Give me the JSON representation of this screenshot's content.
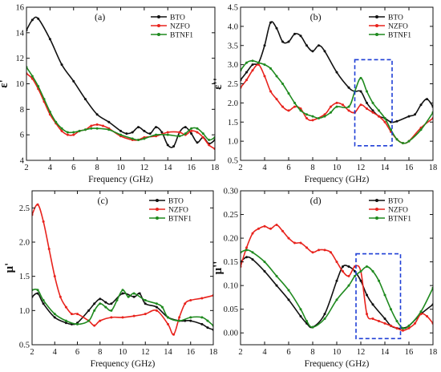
{
  "colors": {
    "BTO": "#111111",
    "NZFO": "#e8231d",
    "BTNF1": "#1f8a1f",
    "highlight": "#1f3fd6"
  },
  "chart_data": [
    {
      "type": "line",
      "tag": "(a)",
      "xlabel": "Frequency (GHz)",
      "ylabel": "ε'",
      "xlim": [
        2,
        18
      ],
      "ylim": [
        4,
        16
      ],
      "xticks": [
        2,
        4,
        6,
        8,
        10,
        12,
        14,
        16,
        18
      ],
      "yticks": [
        4,
        6,
        8,
        10,
        12,
        14,
        16
      ],
      "legend_position": "top-right",
      "highlight_box": null,
      "series": [
        {
          "name": "BTO",
          "x": [
            2,
            2.5,
            3,
            4,
            5,
            6,
            7,
            8,
            9,
            10,
            10.5,
            11,
            11.5,
            12,
            12.5,
            13,
            13.5,
            14,
            14.5,
            15,
            15.5,
            16,
            16.5,
            17,
            17.5,
            18
          ],
          "y": [
            14.2,
            15.0,
            15.1,
            13.5,
            11.5,
            10.2,
            8.8,
            7.6,
            7.0,
            6.3,
            6.1,
            6.2,
            6.6,
            6.3,
            6.1,
            6.6,
            6.2,
            5.2,
            5.1,
            6.2,
            6.6,
            6.1,
            5.4,
            5.8,
            5.3,
            5.6
          ]
        },
        {
          "name": "NZFO",
          "x": [
            2,
            2.5,
            3,
            3.5,
            4,
            4.5,
            5,
            5.5,
            6,
            6.5,
            7,
            7.5,
            8,
            8.5,
            9,
            10,
            11,
            11.5,
            12,
            13,
            14,
            15,
            15.5,
            16,
            16.5,
            17,
            17.5,
            18
          ],
          "y": [
            10.8,
            10.4,
            9.6,
            8.6,
            7.6,
            6.9,
            6.3,
            6.0,
            6.0,
            6.3,
            6.4,
            6.7,
            6.8,
            6.7,
            6.5,
            5.9,
            5.6,
            5.6,
            5.8,
            5.9,
            6.2,
            6.2,
            6.0,
            6.3,
            6.2,
            5.8,
            5.2,
            4.9
          ]
        },
        {
          "name": "BTNF1",
          "x": [
            2,
            2.5,
            3,
            3.5,
            4,
            4.5,
            5,
            5.5,
            6,
            6.5,
            7,
            7.5,
            8,
            9,
            10,
            11,
            11.5,
            12,
            13,
            14,
            15,
            15.5,
            16,
            16.5,
            17,
            17.5,
            18
          ],
          "y": [
            11.3,
            10.6,
            9.8,
            8.8,
            7.8,
            7.0,
            6.5,
            6.2,
            6.2,
            6.3,
            6.4,
            6.5,
            6.5,
            6.4,
            6.0,
            5.7,
            5.6,
            5.7,
            6.0,
            6.0,
            5.9,
            6.1,
            6.5,
            6.5,
            6.1,
            5.6,
            5.8
          ]
        }
      ]
    },
    {
      "type": "line",
      "tag": "(b)",
      "xlabel": "Frequency (GHz)",
      "ylabel": "ε''",
      "xlim": [
        2,
        18
      ],
      "ylim": [
        0.5,
        4.5
      ],
      "xticks": [
        2,
        4,
        6,
        8,
        10,
        12,
        14,
        16,
        18
      ],
      "yticks": [
        0.5,
        1.0,
        1.5,
        2.0,
        2.5,
        3.0,
        3.5,
        4.0,
        4.5
      ],
      "legend_position": "top-right",
      "highlight_box": {
        "x": [
          11.5,
          14.6
        ],
        "y": [
          0.88,
          3.13
        ]
      },
      "series": [
        {
          "name": "BTO",
          "x": [
            2,
            2.5,
            3,
            3.5,
            4,
            4.5,
            5,
            5.5,
            6,
            6.5,
            7,
            7.5,
            8,
            8.5,
            9,
            10,
            11,
            11.5,
            12,
            12.5,
            13,
            13.5,
            14,
            14.5,
            15,
            16,
            16.5,
            17,
            17.5,
            18
          ],
          "y": [
            2.6,
            2.8,
            3.0,
            3.05,
            3.5,
            4.1,
            3.95,
            3.6,
            3.6,
            3.8,
            3.75,
            3.5,
            3.35,
            3.5,
            3.35,
            2.8,
            2.4,
            2.3,
            2.3,
            2.0,
            1.8,
            1.65,
            1.6,
            1.5,
            1.52,
            1.65,
            1.7,
            1.95,
            2.1,
            1.9
          ]
        },
        {
          "name": "NZFO",
          "x": [
            2,
            2.5,
            3,
            3.5,
            4,
            4.5,
            5,
            5.5,
            6,
            6.5,
            7,
            7.5,
            8,
            9,
            9.5,
            10,
            10.5,
            11,
            11.5,
            12,
            12.5,
            13,
            13.5,
            14,
            14.5,
            15,
            15.5,
            16,
            17,
            18
          ],
          "y": [
            2.4,
            2.6,
            2.85,
            3.0,
            2.7,
            2.3,
            2.1,
            1.9,
            1.8,
            1.9,
            1.85,
            1.6,
            1.55,
            1.7,
            1.9,
            2.0,
            1.95,
            1.8,
            1.75,
            1.95,
            1.85,
            1.75,
            1.65,
            1.5,
            1.25,
            1.05,
            0.95,
            1.0,
            1.35,
            1.6
          ]
        },
        {
          "name": "BTNF1",
          "x": [
            2,
            2.5,
            3,
            3.5,
            4,
            4.5,
            5,
            5.5,
            6,
            6.5,
            7,
            7.5,
            8,
            8.5,
            9,
            9.5,
            10,
            11,
            11.5,
            12,
            12.5,
            13,
            13.5,
            14,
            14.5,
            15,
            15.5,
            16,
            17,
            18
          ],
          "y": [
            2.85,
            3.05,
            3.1,
            3.05,
            3.0,
            2.9,
            2.7,
            2.5,
            2.25,
            2.0,
            1.8,
            1.7,
            1.65,
            1.6,
            1.65,
            1.75,
            1.9,
            1.9,
            2.3,
            2.65,
            2.3,
            2.0,
            1.8,
            1.6,
            1.3,
            1.05,
            0.95,
            1.0,
            1.3,
            1.75
          ]
        }
      ]
    },
    {
      "type": "line",
      "tag": "(c)",
      "xlabel": "Frequency (GHz)",
      "ylabel": "μ'",
      "xlim": [
        2,
        18
      ],
      "ylim": [
        0.5,
        2.75
      ],
      "xticks": [
        2,
        4,
        6,
        8,
        10,
        12,
        14,
        16,
        18
      ],
      "yticks": [
        0.5,
        1.0,
        1.5,
        2.0,
        2.5
      ],
      "legend_position": "top-right",
      "highlight_box": null,
      "series": [
        {
          "name": "BTO",
          "x": [
            2,
            2.5,
            3,
            4,
            5,
            5.5,
            6,
            7,
            7.5,
            8,
            8.5,
            9,
            10,
            11,
            11.5,
            12,
            13,
            14,
            15,
            15.5,
            16,
            17,
            17.5,
            18
          ],
          "y": [
            1.2,
            1.25,
            1.1,
            0.9,
            0.82,
            0.8,
            0.82,
            1.0,
            1.1,
            1.17,
            1.12,
            1.1,
            1.25,
            1.2,
            1.25,
            1.1,
            1.05,
            0.9,
            0.85,
            0.85,
            0.85,
            0.8,
            0.75,
            0.72
          ]
        },
        {
          "name": "NZFO",
          "x": [
            2,
            2.5,
            3,
            3.5,
            4,
            4.5,
            5,
            5.5,
            6,
            7,
            7.5,
            8,
            9,
            10,
            11,
            12,
            13,
            14,
            14.5,
            15,
            15.5,
            16,
            17,
            18
          ],
          "y": [
            2.4,
            2.55,
            2.3,
            1.9,
            1.5,
            1.2,
            1.05,
            0.95,
            0.95,
            0.85,
            0.78,
            0.85,
            0.9,
            0.9,
            0.92,
            0.95,
            1.0,
            0.8,
            0.65,
            0.9,
            1.1,
            1.15,
            1.18,
            1.22
          ]
        },
        {
          "name": "BTNF1",
          "x": [
            2,
            2.5,
            3,
            4,
            5,
            6,
            7,
            7.5,
            8,
            8.5,
            9,
            9.5,
            10,
            10.5,
            11,
            12,
            13,
            13.5,
            14,
            15,
            16,
            17,
            17.5,
            18
          ],
          "y": [
            1.3,
            1.3,
            1.15,
            0.95,
            0.85,
            0.8,
            0.85,
            1.0,
            1.1,
            1.05,
            1.0,
            1.15,
            1.3,
            1.2,
            1.25,
            1.15,
            1.1,
            1.05,
            0.9,
            0.85,
            0.9,
            0.9,
            0.85,
            0.78
          ]
        }
      ]
    },
    {
      "type": "line",
      "tag": "(d)",
      "xlabel": "Frequency (GHz)",
      "ylabel": "μ''",
      "xlim": [
        2,
        18
      ],
      "ylim": [
        -0.025,
        0.3
      ],
      "xticks": [
        2,
        4,
        6,
        8,
        10,
        12,
        14,
        16,
        18
      ],
      "yticks": [
        0.0,
        0.05,
        0.1,
        0.15,
        0.2,
        0.25,
        0.3
      ],
      "legend_position": "top-right",
      "highlight_box": {
        "x": [
          11.6,
          15.3
        ],
        "y": [
          -0.012,
          0.167
        ]
      },
      "series": [
        {
          "name": "BTO",
          "x": [
            2,
            2.5,
            3,
            4,
            5,
            6,
            7,
            7.5,
            8,
            9,
            10,
            10.5,
            11,
            11.5,
            12,
            12.5,
            13,
            14,
            14.5,
            15,
            15.5,
            16,
            17,
            18
          ],
          "y": [
            0.15,
            0.16,
            0.155,
            0.13,
            0.1,
            0.07,
            0.035,
            0.02,
            0.012,
            0.04,
            0.11,
            0.14,
            0.14,
            0.13,
            0.11,
            0.08,
            0.06,
            0.03,
            0.015,
            0.01,
            0.01,
            0.015,
            0.04,
            0.06
          ]
        },
        {
          "name": "NZFO",
          "x": [
            2,
            2.5,
            3,
            3.5,
            4,
            4.5,
            5,
            5.5,
            6,
            6.5,
            7,
            7.5,
            8,
            8.5,
            9,
            9.5,
            10,
            10.5,
            11,
            11.5,
            12,
            12.5,
            13,
            13.5,
            14,
            14.5,
            15,
            15.5,
            16,
            16.5,
            17,
            17.5,
            18
          ],
          "y": [
            0.14,
            0.18,
            0.21,
            0.22,
            0.225,
            0.22,
            0.228,
            0.215,
            0.2,
            0.19,
            0.19,
            0.18,
            0.17,
            0.175,
            0.175,
            0.17,
            0.15,
            0.13,
            0.12,
            0.14,
            0.13,
            0.04,
            0.03,
            0.025,
            0.02,
            0.015,
            0.01,
            0.005,
            0.01,
            0.02,
            0.04,
            0.035,
            0.02
          ]
        },
        {
          "name": "BTNF1",
          "x": [
            2,
            2.5,
            3,
            4,
            5,
            6,
            7,
            7.5,
            8,
            9,
            10,
            11,
            11.5,
            12,
            12.5,
            13,
            13.5,
            14,
            14.5,
            15,
            15.5,
            16,
            17,
            18
          ],
          "y": [
            0.17,
            0.175,
            0.17,
            0.15,
            0.12,
            0.09,
            0.05,
            0.025,
            0.012,
            0.03,
            0.07,
            0.1,
            0.12,
            0.13,
            0.14,
            0.13,
            0.11,
            0.08,
            0.05,
            0.025,
            0.01,
            0.015,
            0.045,
            0.095
          ]
        }
      ]
    }
  ]
}
